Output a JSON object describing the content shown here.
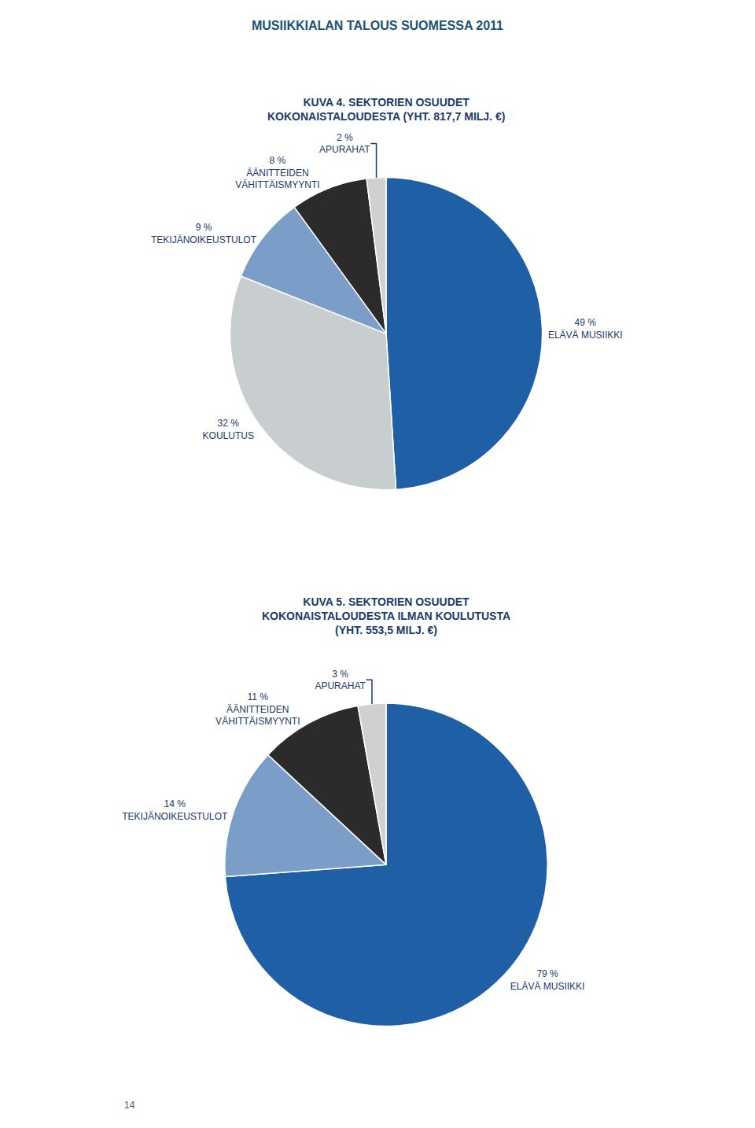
{
  "title": "MUSIIKKIALAN TALOUS SUOMESSA 2011",
  "annotations": [
    "14"
  ],
  "chart_data": [
    {
      "type": "pie",
      "title": "KUVA 4. SEKTORIEN OSUUDET\nKOKONAISTALOUDESTA (YHT. 817,7 MILJ. €)",
      "categories": [
        "ELÄVÄ MUSIIKKI",
        "KOULUTUS",
        "TEKIJÄNOIKEUSTULOT",
        "ÄÄNITTEIDEN\nVÄHITTÄISMYYNTI",
        "APURAHAT"
      ],
      "values": [
        49,
        32,
        9,
        8,
        2
      ],
      "value_labels": [
        "49 %",
        "32 %",
        "9 %",
        "8 %",
        "2 %"
      ],
      "colors": [
        "#1f5fa6",
        "#c8cdd0",
        "#7b9ec8",
        "#2b2b2b",
        "#d0d0d0"
      ],
      "data_labels": true
    },
    {
      "type": "pie",
      "title": "KUVA 5. SEKTORIEN OSUUDET\nKOKONAISTALOUDESTA ILMAN KOULUTUSTA\n(YHT. 553,5 MILJ. €)",
      "categories": [
        "ELÄVÄ MUSIIKKI",
        "TEKIJÄNOIKEUSTULOT",
        "ÄÄNITTEIDEN\nVÄHITTÄISMYYNTI",
        "APURAHAT"
      ],
      "values": [
        79,
        14,
        11,
        3
      ],
      "value_labels": [
        "79 %",
        "14 %",
        "11 %",
        "3 %"
      ],
      "colors": [
        "#1f5fa6",
        "#7b9ec8",
        "#2b2b2b",
        "#d0d0d0"
      ],
      "data_labels": true
    }
  ]
}
